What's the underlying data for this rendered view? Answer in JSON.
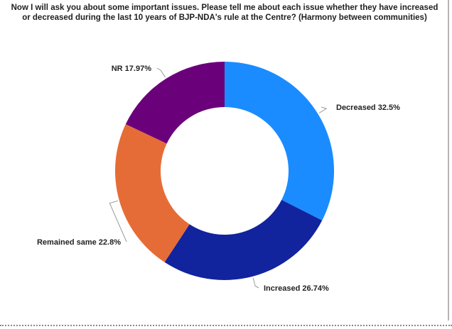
{
  "chart_data": {
    "type": "pie",
    "title": "Now I will ask you about some important issues. Please tell me about each issue whether they have increased or decreased during the last 10 years of BJP-NDA's rule at the Centre? (Harmony between communities)",
    "donut": true,
    "slices": [
      {
        "label": "Decreased",
        "value": 32.5,
        "display": "Decreased 32.5%",
        "color": "#1a8cff"
      },
      {
        "label": "Increased",
        "value": 26.74,
        "display": "Increased 26.74%",
        "color": "#12239e"
      },
      {
        "label": "Remained same",
        "value": 22.8,
        "display": "Remained same 22.8%",
        "color": "#e66c37"
      },
      {
        "label": "NR",
        "value": 17.97,
        "display": "NR 17.97%",
        "color": "#6b007b"
      }
    ]
  }
}
